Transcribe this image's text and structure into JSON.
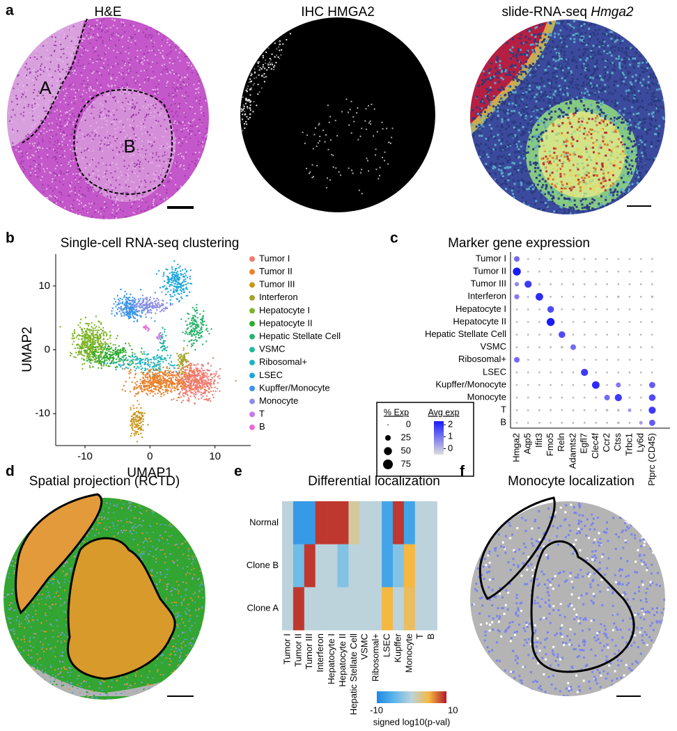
{
  "panels": {
    "a": {
      "label": "a",
      "titles": [
        "H&E",
        "IHC HMGA2"
      ],
      "title3": "slide-RNA-seq",
      "title3_italic": "Hmga2",
      "regions": [
        "A",
        "B"
      ]
    },
    "b": {
      "label": "b",
      "title": "Single-cell RNA-seq clustering",
      "xlabel": "UMAP1",
      "ylabel": "UMAP2",
      "xlim": [
        -14.5,
        15.5
      ],
      "ylim": [
        -15,
        15
      ],
      "xticks": [
        -10,
        0,
        10
      ],
      "yticks": [
        -10,
        0,
        10
      ],
      "clusters": [
        {
          "name": "Tumor I",
          "color": "#f07b72"
        },
        {
          "name": "Tumor II",
          "color": "#e8822c"
        },
        {
          "name": "Tumor III",
          "color": "#c9961a"
        },
        {
          "name": "Interferon",
          "color": "#a5a32a"
        },
        {
          "name": "Hepatocyte I",
          "color": "#7fb428"
        },
        {
          "name": "Hepatocyte II",
          "color": "#2eaa2e"
        },
        {
          "name": "Hepatic Stellate Cell",
          "color": "#27b36a"
        },
        {
          "name": "VSMC",
          "color": "#22b59f"
        },
        {
          "name": "Ribosomal+",
          "color": "#1fb3be"
        },
        {
          "name": "LSEC",
          "color": "#1aa7dc"
        },
        {
          "name": "Kupffer/Monocyte",
          "color": "#3b93e8"
        },
        {
          "name": "Monocyte",
          "color": "#8c8ee8"
        },
        {
          "name": "T",
          "color": "#c57be6"
        },
        {
          "name": "B",
          "color": "#ea6ad4"
        }
      ]
    },
    "c": {
      "label": "c",
      "title": "Marker gene expression",
      "rows": [
        "Tumor I",
        "Tumor II",
        "Tumor III",
        "Interferon",
        "Hepatocyte I",
        "Hepatocyte II",
        "Hepatic Stellate Cell",
        "VSMC",
        "Ribosomal+",
        "LSEC",
        "Kupffer/Monocyte",
        "Monocyte",
        "T",
        "B"
      ],
      "genes": [
        "Hmga2",
        "Aqp5",
        "Ifit3",
        "Fmo5",
        "Reln",
        "Adamts2",
        "Egfl7",
        "Clec4f",
        "Ccr2",
        "Ctss",
        "Trbc1",
        "Ly6d",
        "Ptprc (CD45)"
      ],
      "pct": [
        [
          25,
          3,
          3,
          3,
          3,
          3,
          3,
          3,
          3,
          3,
          3,
          3,
          3
        ],
        [
          50,
          3,
          3,
          3,
          3,
          3,
          3,
          3,
          3,
          3,
          3,
          3,
          3
        ],
        [
          15,
          40,
          3,
          3,
          3,
          3,
          3,
          3,
          3,
          3,
          3,
          3,
          3
        ],
        [
          20,
          3,
          45,
          3,
          3,
          3,
          3,
          3,
          3,
          5,
          3,
          3,
          5
        ],
        [
          3,
          3,
          3,
          35,
          3,
          3,
          3,
          3,
          3,
          3,
          3,
          3,
          3
        ],
        [
          3,
          3,
          3,
          50,
          3,
          3,
          3,
          3,
          3,
          3,
          3,
          3,
          3
        ],
        [
          3,
          3,
          3,
          5,
          35,
          3,
          3,
          3,
          3,
          3,
          3,
          3,
          3
        ],
        [
          3,
          3,
          3,
          3,
          5,
          25,
          3,
          3,
          3,
          3,
          3,
          3,
          3
        ],
        [
          25,
          3,
          3,
          3,
          3,
          3,
          3,
          3,
          3,
          3,
          3,
          3,
          3
        ],
        [
          3,
          3,
          3,
          3,
          3,
          3,
          40,
          3,
          3,
          3,
          3,
          3,
          3
        ],
        [
          3,
          3,
          3,
          3,
          3,
          3,
          3,
          45,
          3,
          20,
          3,
          3,
          30
        ],
        [
          3,
          3,
          3,
          3,
          3,
          3,
          3,
          3,
          25,
          40,
          3,
          3,
          35
        ],
        [
          3,
          3,
          3,
          3,
          3,
          3,
          3,
          3,
          5,
          5,
          10,
          3,
          40
        ],
        [
          3,
          3,
          3,
          3,
          3,
          3,
          3,
          3,
          3,
          5,
          3,
          10,
          30
        ]
      ],
      "legend": {
        "size_title": "% Exp",
        "color_title": "Avg exp",
        "sizes": [
          0,
          25,
          50,
          75
        ],
        "colors": [
          2,
          1,
          0
        ]
      }
    },
    "d": {
      "label": "d",
      "title": "Spatial projection (RCTD)"
    },
    "e": {
      "label": "e",
      "title": "Differential localization",
      "rows": [
        "Normal",
        "Clone B",
        "Clone A"
      ],
      "columns": [
        "Tumor I",
        "Tumor II",
        "Tumor III",
        "Interferon",
        "Hepatocyte I",
        "Hepatocyte II",
        "Hepatic Stellate Cell",
        "VSMC",
        "Ribosomal+",
        "LSEC",
        "Kupffer",
        "Monocyte",
        "T",
        "B"
      ],
      "values": [
        [
          0,
          -8,
          -8,
          9,
          9,
          9,
          2,
          0,
          0,
          -7,
          9,
          -7,
          0,
          0
        ],
        [
          0,
          -4,
          9,
          0,
          0,
          -3,
          0,
          0,
          0,
          -7,
          -3,
          5,
          0,
          0
        ],
        [
          0,
          9,
          0,
          0,
          0,
          0,
          0,
          0,
          0,
          5,
          0,
          4,
          0,
          0
        ]
      ],
      "colorbar": {
        "min": -10,
        "max": 10,
        "label": "signed log10(p-val)"
      }
    },
    "f": {
      "label": "f",
      "title": "Monocyte localization"
    }
  }
}
